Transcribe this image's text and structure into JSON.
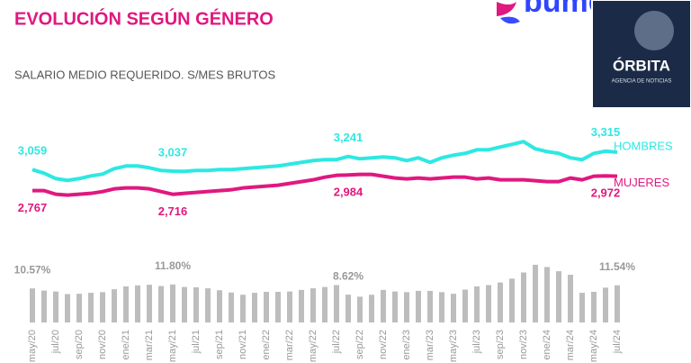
{
  "brand": {
    "name": "bumeran"
  },
  "badge": {
    "name": "ÓRBITA",
    "tagline": "AGENCIA DE NOTICIAS"
  },
  "chart_data": [
    {
      "type": "line",
      "title": "EVOLUCIÓN SEGÚN GÉNERO",
      "subtitle": "SALARIO MEDIO REQUERIDO. S/MES BRUTOS",
      "ylim": [
        2400,
        3800
      ],
      "series": [
        {
          "name": "HOMBRES",
          "color": "#2ee8e2",
          "values": [
            3059,
            3009,
            2934,
            2909,
            2934,
            2971,
            2996,
            3072,
            3109,
            3109,
            3084,
            3047,
            3037,
            3034,
            3047,
            3047,
            3059,
            3059,
            3072,
            3084,
            3097,
            3109,
            3134,
            3159,
            3184,
            3197,
            3197,
            3241,
            3209,
            3222,
            3234,
            3222,
            3184,
            3222,
            3159,
            3222,
            3259,
            3284,
            3334,
            3334,
            3372,
            3409,
            3447,
            3347,
            3309,
            3284,
            3222,
            3197,
            3284,
            3315,
            3300
          ],
          "value_labels": [
            "3,059",
            null,
            null,
            null,
            null,
            null,
            null,
            null,
            null,
            null,
            null,
            null,
            "3,037",
            null,
            null,
            null,
            null,
            null,
            null,
            null,
            null,
            null,
            null,
            null,
            null,
            null,
            null,
            "3,241",
            null,
            null,
            null,
            null,
            null,
            null,
            null,
            null,
            null,
            null,
            null,
            null,
            null,
            null,
            null,
            null,
            null,
            null,
            null,
            null,
            null,
            "3,315",
            null
          ]
        },
        {
          "name": "MUJERES",
          "color": "#e0187f",
          "values": [
            2767,
            2767,
            2717,
            2704,
            2717,
            2729,
            2754,
            2792,
            2804,
            2804,
            2792,
            2754,
            2716,
            2729,
            2742,
            2754,
            2767,
            2779,
            2804,
            2817,
            2829,
            2842,
            2867,
            2892,
            2917,
            2954,
            2979,
            2984,
            2992,
            2992,
            2967,
            2942,
            2929,
            2942,
            2929,
            2942,
            2954,
            2954,
            2929,
            2942,
            2917,
            2917,
            2917,
            2904,
            2892,
            2892,
            2942,
            2917,
            2967,
            2972,
            2967
          ],
          "value_labels": [
            "2,767",
            null,
            null,
            null,
            null,
            null,
            null,
            null,
            null,
            null,
            null,
            null,
            "2,716",
            null,
            null,
            null,
            null,
            null,
            null,
            null,
            null,
            null,
            null,
            null,
            null,
            null,
            null,
            "2,984",
            null,
            null,
            null,
            null,
            null,
            null,
            null,
            null,
            null,
            null,
            null,
            null,
            null,
            null,
            null,
            null,
            null,
            null,
            null,
            null,
            null,
            "2,972",
            null
          ]
        }
      ]
    },
    {
      "type": "bar",
      "color": "#bdbdbd",
      "ylim": [
        0,
        19
      ],
      "categories": [
        "may/20",
        null,
        "jul/20",
        null,
        "sep/20",
        null,
        "nov/20",
        null,
        "ene/21",
        null,
        "mar/21",
        null,
        "may/21",
        null,
        "jul/21",
        null,
        "sep/21",
        null,
        "nov/21",
        null,
        "ene/22",
        null,
        "mar/22",
        null,
        "may/22",
        null,
        "jul/22",
        null,
        "sep/22",
        null,
        "nov/22",
        null,
        "ene/23",
        null,
        "mar/23",
        null,
        "may/23",
        null,
        "jul/23",
        null,
        "sep/23",
        null,
        "nov/23",
        null,
        "ene/24",
        null,
        "mar/24",
        null,
        "may/24",
        null,
        "jul/24"
      ],
      "values": [
        10.57,
        9.9,
        9.6,
        8.8,
        8.9,
        9.2,
        9.4,
        10.3,
        11.2,
        11.5,
        11.7,
        11.3,
        11.8,
        11.0,
        10.9,
        10.6,
        10.0,
        9.3,
        8.6,
        9.2,
        9.5,
        9.5,
        9.6,
        10.1,
        10.6,
        11.0,
        11.6,
        8.62,
        8.0,
        8.6,
        10.1,
        9.6,
        9.4,
        9.8,
        9.8,
        9.4,
        8.9,
        10.2,
        11.2,
        11.6,
        12.4,
        13.6,
        15.5,
        17.9,
        17.2,
        15.9,
        14.8,
        9.2,
        9.5,
        10.8,
        11.54
      ],
      "value_labels": [
        "10.57%",
        null,
        null,
        null,
        null,
        null,
        null,
        null,
        null,
        null,
        null,
        null,
        "11.80%",
        null,
        null,
        null,
        null,
        null,
        null,
        null,
        null,
        null,
        null,
        null,
        null,
        null,
        null,
        "8.62%",
        null,
        null,
        null,
        null,
        null,
        null,
        null,
        null,
        null,
        null,
        null,
        null,
        null,
        null,
        null,
        null,
        null,
        null,
        null,
        null,
        null,
        null,
        "11.54%"
      ]
    }
  ]
}
